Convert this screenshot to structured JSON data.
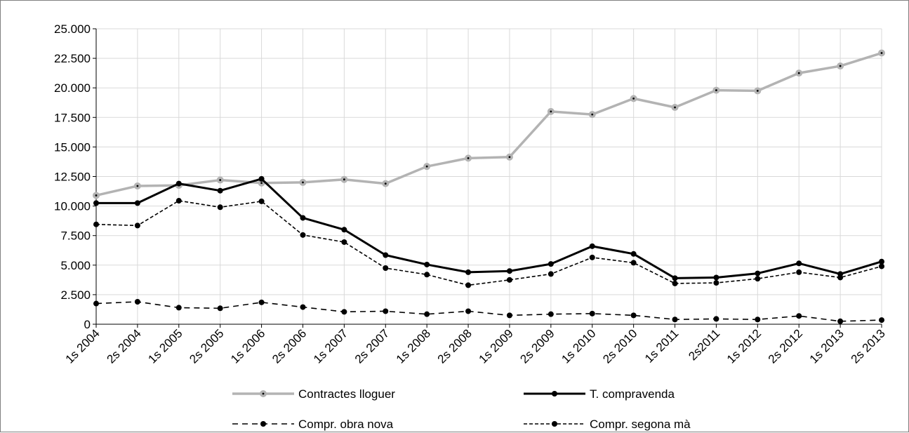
{
  "chart_data": {
    "type": "line",
    "title": "",
    "xlabel": "",
    "ylabel": "",
    "categories": [
      "1s 2004",
      "2s 2004",
      "1s 2005",
      "2s 2005",
      "1s 2006",
      "2s 2006",
      "1s 2007",
      "2s 2007",
      "1s 2008",
      "2s 2008",
      "1s 2009",
      "2s 2009",
      "1s 2010",
      "2s 2010",
      "1s 2011",
      "2s2011",
      "1s 2012",
      "2s 2012",
      "1s 2013",
      "2s 2013"
    ],
    "ylim": [
      0,
      25000
    ],
    "yticks": [
      {
        "value": 0,
        "label": "0"
      },
      {
        "value": 2500,
        "label": "2.500"
      },
      {
        "value": 5000,
        "label": "5.000"
      },
      {
        "value": 7500,
        "label": "7.500"
      },
      {
        "value": 10000,
        "label": "10.000"
      },
      {
        "value": 12500,
        "label": "12.500"
      },
      {
        "value": 15000,
        "label": "15.000"
      },
      {
        "value": 17500,
        "label": "17.500"
      },
      {
        "value": 20000,
        "label": "20.000"
      },
      {
        "value": 22500,
        "label": "22.500"
      },
      {
        "value": 25000,
        "label": "25.000"
      }
    ],
    "grid": true,
    "legend_position": "bottom",
    "series": [
      {
        "name": "Contractes lloguer",
        "color": "#b3b3b3",
        "style": "solid",
        "marker": "circle-gray",
        "values": [
          10900,
          11700,
          11750,
          12200,
          11950,
          12000,
          12250,
          11900,
          13350,
          14050,
          14150,
          18000,
          17750,
          19100,
          18350,
          19800,
          19750,
          21250,
          21850,
          22950
        ]
      },
      {
        "name": "T. compravenda",
        "color": "#000000",
        "style": "solid",
        "marker": "circle-black",
        "values": [
          10250,
          10250,
          11900,
          11300,
          12300,
          9000,
          8000,
          5850,
          5050,
          4400,
          4500,
          5100,
          6600,
          5950,
          3900,
          3950,
          4300,
          5150,
          4250,
          5300
        ]
      },
      {
        "name": "Compr. obra nova",
        "color": "#000000",
        "style": "dashed",
        "marker": "circle-black",
        "values": [
          1750,
          1900,
          1400,
          1350,
          1850,
          1450,
          1050,
          1100,
          850,
          1100,
          750,
          850,
          900,
          750,
          400,
          450,
          400,
          700,
          250,
          350
        ]
      },
      {
        "name": "Compr. segona mà",
        "color": "#000000",
        "style": "dashed-fine",
        "marker": "circle-black",
        "values": [
          8450,
          8350,
          10450,
          9900,
          10400,
          7550,
          6950,
          4750,
          4200,
          3300,
          3750,
          4250,
          5650,
          5200,
          3450,
          3500,
          3850,
          4400,
          3950,
          4900
        ]
      }
    ]
  }
}
